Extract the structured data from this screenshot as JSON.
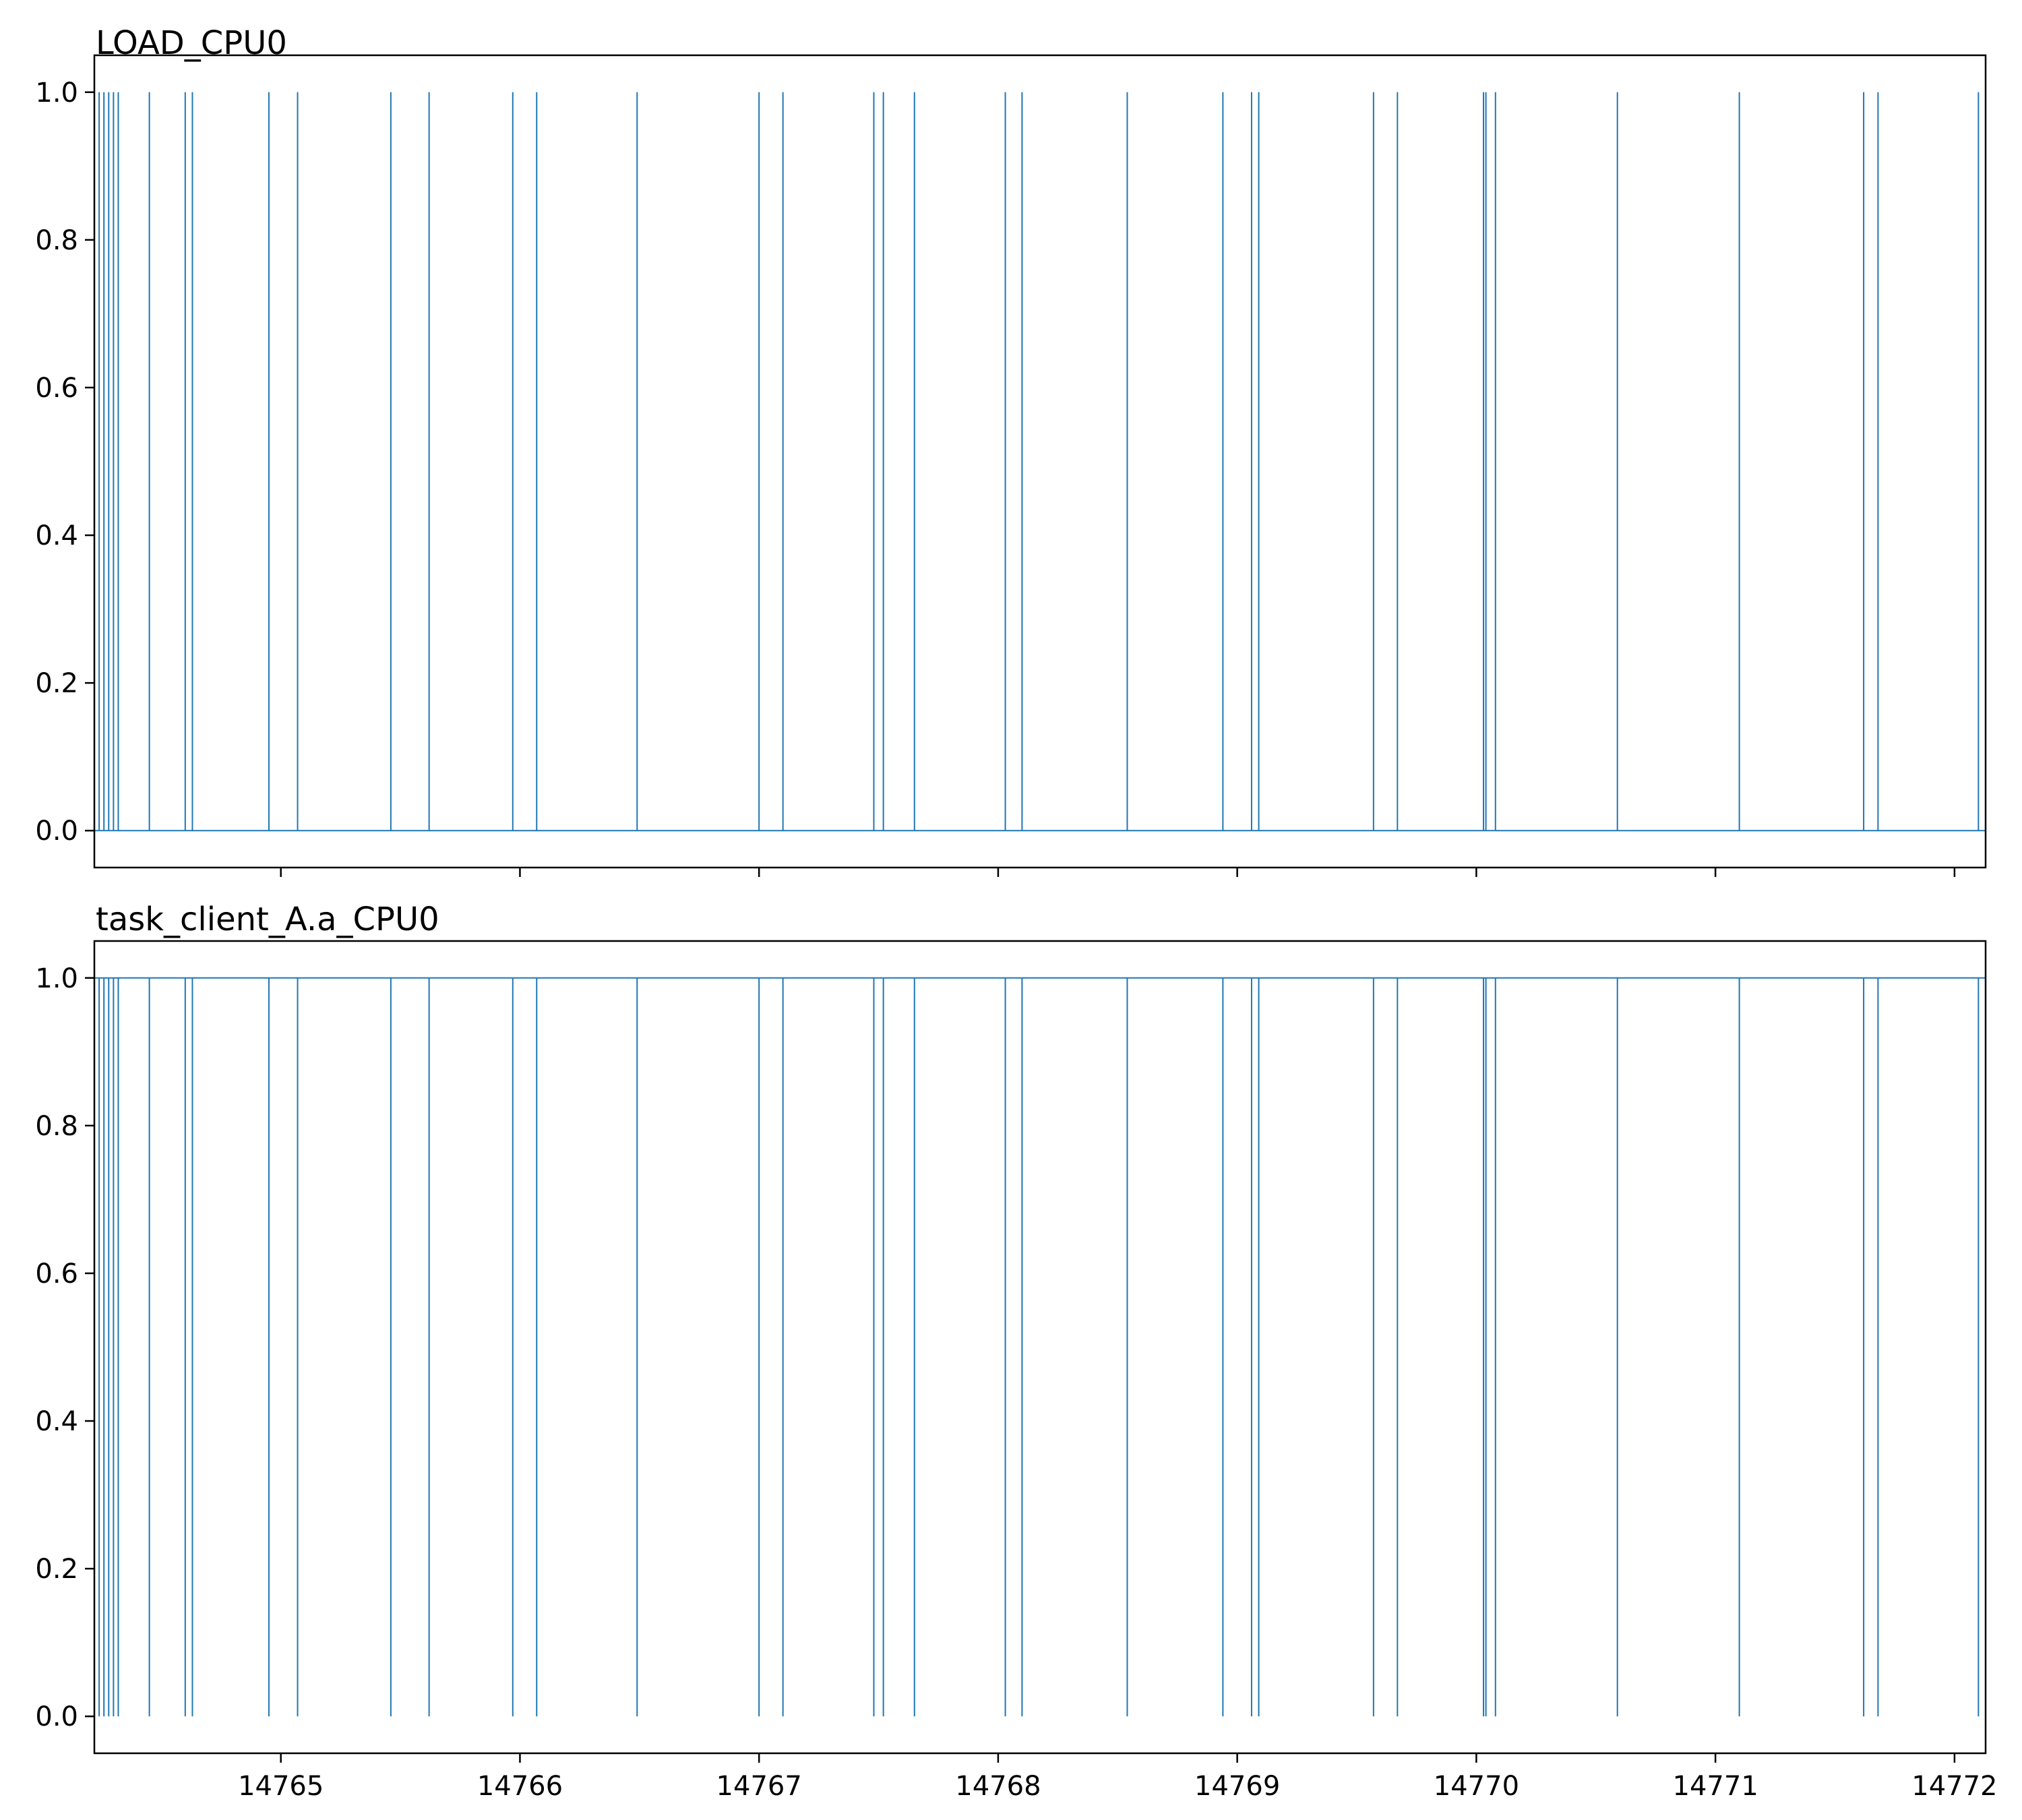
{
  "chart_data": [
    {
      "type": "line",
      "title": "LOAD_CPU0",
      "xlabel": "",
      "ylabel": "",
      "xlim": [
        14764.22,
        14772.13
      ],
      "ylim": [
        -0.05,
        1.05
      ],
      "x_ticks": [
        14765,
        14766,
        14767,
        14768,
        14769,
        14770,
        14771,
        14772
      ],
      "x_tick_labels": [],
      "y_ticks": [
        0.0,
        0.2,
        0.4,
        0.6,
        0.8,
        1.0
      ],
      "y_tick_labels": [
        "0.0",
        "0.2",
        "0.4",
        "0.6",
        "0.8",
        "1.0"
      ],
      "grid": false,
      "color": "#1f77b4",
      "baseline": 0,
      "spike_value": 1,
      "spike_x": [
        14764.24,
        14764.26,
        14764.28,
        14764.3,
        14764.32,
        14764.45,
        14764.6,
        14764.63,
        14764.95,
        14765.07,
        14765.46,
        14765.62,
        14765.97,
        14766.07,
        14766.49,
        14767.0,
        14767.1,
        14767.48,
        14767.52,
        14767.65,
        14768.03,
        14768.1,
        14768.54,
        14768.94,
        14769.06,
        14769.09,
        14769.57,
        14769.67,
        14770.03,
        14770.04,
        14770.08,
        14770.59,
        14771.1,
        14771.62,
        14771.68,
        14772.1
      ]
    },
    {
      "type": "line",
      "title": "task_client_A.a_CPU0",
      "xlabel": "",
      "ylabel": "",
      "xlim": [
        14764.22,
        14772.13
      ],
      "ylim": [
        -0.05,
        1.05
      ],
      "x_ticks": [
        14765,
        14766,
        14767,
        14768,
        14769,
        14770,
        14771,
        14772
      ],
      "x_tick_labels": [
        "14765",
        "14766",
        "14767",
        "14768",
        "14769",
        "14770",
        "14771",
        "14772"
      ],
      "y_ticks": [
        0.0,
        0.2,
        0.4,
        0.6,
        0.8,
        1.0
      ],
      "y_tick_labels": [
        "0.0",
        "0.2",
        "0.4",
        "0.6",
        "0.8",
        "1.0"
      ],
      "grid": false,
      "color": "#1f77b4",
      "baseline": 1,
      "spike_value": 0,
      "spike_x": [
        14764.24,
        14764.26,
        14764.28,
        14764.3,
        14764.32,
        14764.45,
        14764.6,
        14764.63,
        14764.95,
        14765.07,
        14765.46,
        14765.62,
        14765.97,
        14766.07,
        14766.49,
        14767.0,
        14767.1,
        14767.48,
        14767.52,
        14767.65,
        14768.03,
        14768.1,
        14768.54,
        14768.94,
        14769.06,
        14769.09,
        14769.57,
        14769.67,
        14770.03,
        14770.04,
        14770.08,
        14770.59,
        14771.1,
        14771.62,
        14771.68,
        14772.1
      ]
    }
  ]
}
